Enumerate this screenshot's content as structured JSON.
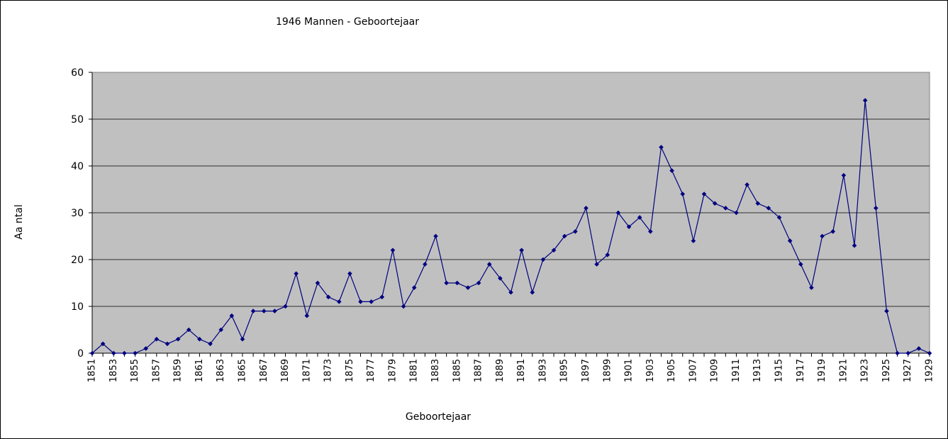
{
  "chart_data": {
    "type": "line",
    "title": "1946 Mannen - Geboortejaar",
    "xlabel": "Geboortejaar",
    "ylabel": "Aa ntal",
    "ylim": [
      0,
      60
    ],
    "yticks": [
      0,
      10,
      20,
      30,
      40,
      50,
      60
    ],
    "xtick_labels": [
      "1851",
      "1853",
      "1855",
      "1857",
      "1859",
      "1861",
      "1863",
      "1865",
      "1867",
      "1869",
      "1871",
      "1873",
      "1875",
      "1877",
      "1879",
      "1881",
      "1883",
      "1885",
      "1887",
      "1889",
      "1891",
      "1893",
      "1895",
      "1897",
      "1899",
      "1901",
      "1903",
      "1905",
      "1907",
      "1909",
      "1911",
      "1913",
      "1915",
      "1917",
      "1919",
      "1921",
      "1923",
      "1925",
      "1927",
      "1929"
    ],
    "grid": true,
    "legend": "none",
    "plot_background": "#c0c0c0",
    "line_color": "#000080",
    "x": [
      1851,
      1852,
      1853,
      1854,
      1855,
      1856,
      1857,
      1858,
      1859,
      1860,
      1861,
      1862,
      1863,
      1864,
      1865,
      1866,
      1867,
      1868,
      1869,
      1870,
      1871,
      1872,
      1873,
      1874,
      1875,
      1876,
      1877,
      1878,
      1879,
      1880,
      1881,
      1882,
      1883,
      1884,
      1885,
      1886,
      1887,
      1888,
      1889,
      1890,
      1891,
      1892,
      1893,
      1894,
      1895,
      1896,
      1897,
      1898,
      1899,
      1900,
      1901,
      1902,
      1903,
      1904,
      1905,
      1906,
      1907,
      1908,
      1909,
      1910,
      1911,
      1912,
      1913,
      1914,
      1915,
      1916,
      1917,
      1918,
      1919,
      1920,
      1921,
      1922,
      1923,
      1924,
      1925,
      1926,
      1927,
      1928,
      1929
    ],
    "values": [
      0,
      2,
      0,
      0,
      0,
      1,
      3,
      2,
      3,
      5,
      3,
      2,
      5,
      8,
      3,
      9,
      9,
      9,
      10,
      17,
      8,
      15,
      12,
      11,
      17,
      11,
      11,
      12,
      22,
      10,
      14,
      19,
      25,
      15,
      15,
      14,
      15,
      19,
      16,
      13,
      22,
      13,
      20,
      22,
      25,
      26,
      31,
      19,
      21,
      30,
      27,
      29,
      26,
      44,
      39,
      34,
      24,
      34,
      32,
      31,
      30,
      36,
      32,
      31,
      29,
      24,
      19,
      14,
      25,
      26,
      38,
      23,
      54,
      31,
      9,
      0,
      0,
      1,
      0
    ]
  }
}
